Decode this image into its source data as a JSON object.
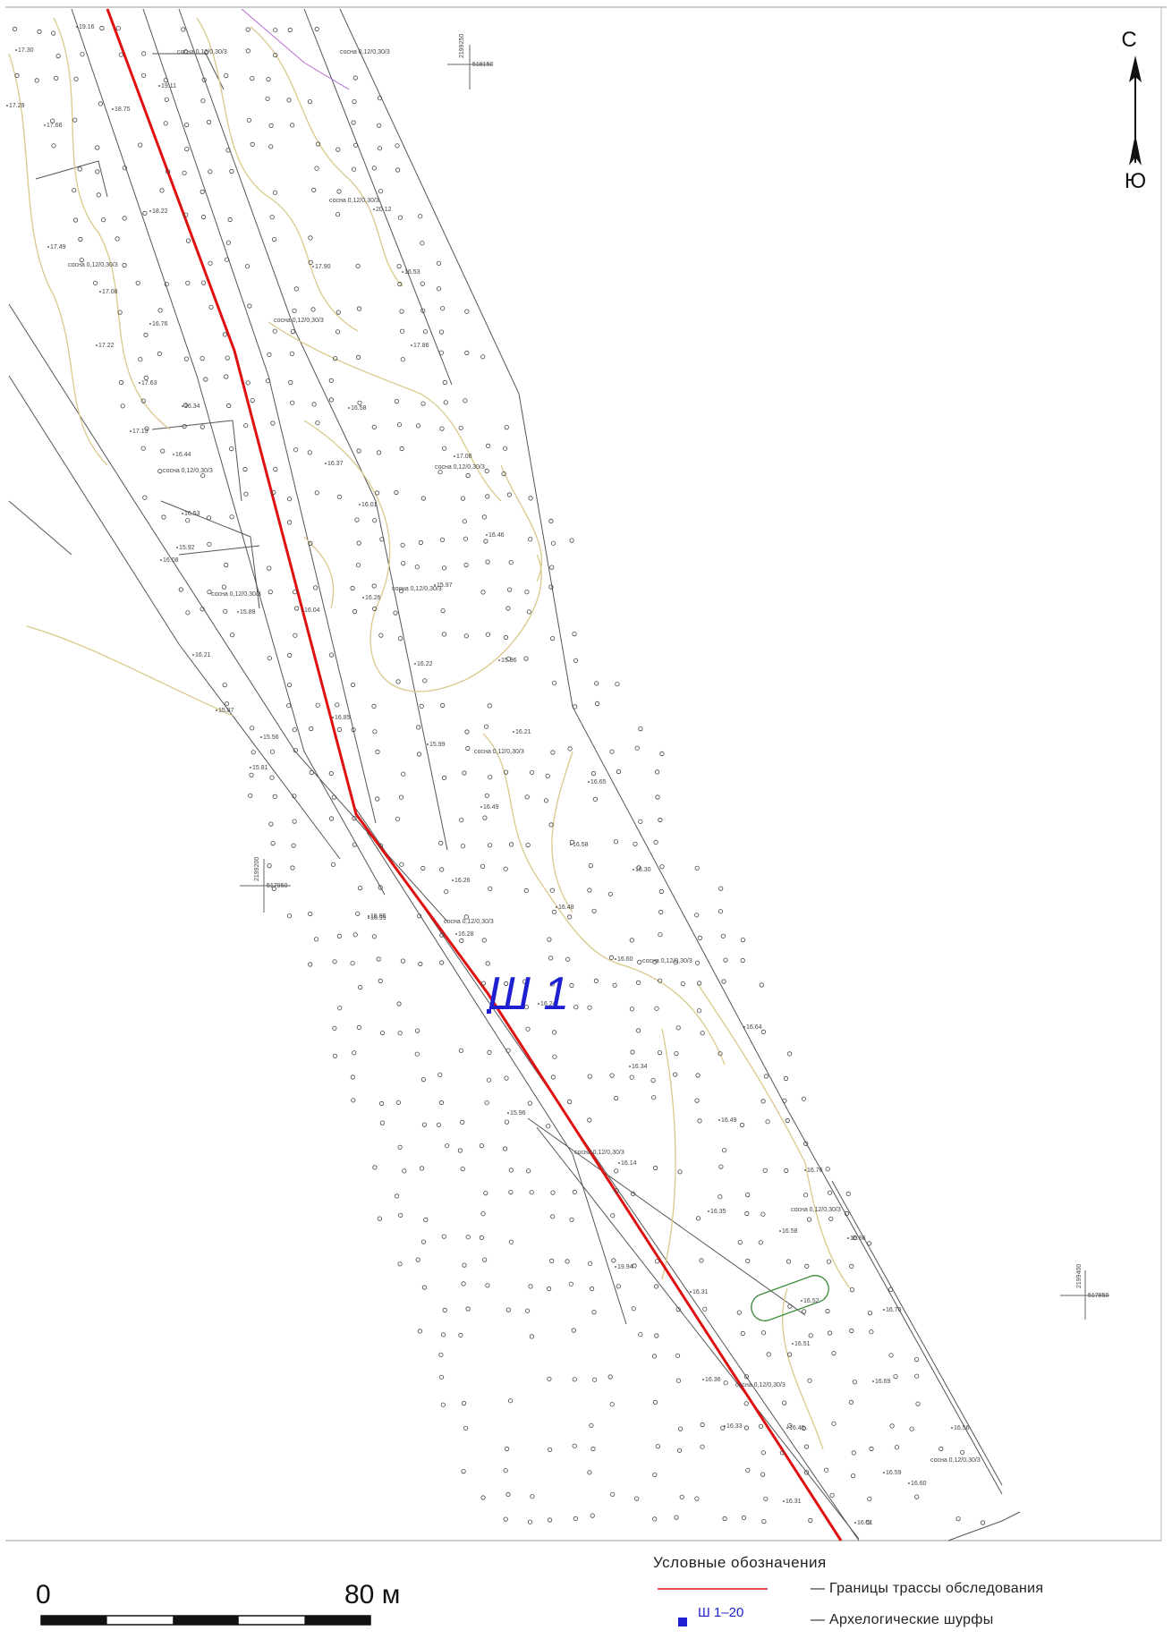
{
  "north_arrow": {
    "top_label": "С",
    "bottom_label": "Ю"
  },
  "pit_label": "Ш 1",
  "scale_bar": {
    "start_label": "0",
    "end_label": "80 м"
  },
  "legend": {
    "title": "Условные обозначения",
    "items": [
      {
        "symbol_label": "",
        "text": "— Границы трассы обследования",
        "color": "#e01010"
      },
      {
        "symbol_label": "Ш 1–20",
        "text": "— Архелогические шурфы",
        "color": "#1f1fd2"
      }
    ]
  },
  "coordinates": [
    {
      "y": "2199250",
      "x": "518150"
    },
    {
      "y": "2199200",
      "x": "517950"
    },
    {
      "y": "2199400",
      "x": "517850"
    }
  ],
  "vegetation_note": "сосна 0,12/0,30/3",
  "elevations": [
    "19.16",
    "17.30",
    "18.75",
    "17.66",
    "17.49",
    "17.29",
    "18.22",
    "17.08",
    "16.76",
    "17.22",
    "17.63",
    "16.34",
    "17.13",
    "16.44",
    "16.53",
    "15.92",
    "16.08",
    "15.89",
    "16.21",
    "15.87",
    "15.56",
    "15.81",
    "19.11",
    "17.90",
    "16.53",
    "17.86",
    "16.58",
    "16.37",
    "16.01",
    "17.06",
    "16.46",
    "16.26",
    "15.97",
    "16.22",
    "15.99",
    "15.96",
    "16.21",
    "16.49",
    "16.65",
    "16.58",
    "16.30",
    "16.26",
    "16.28",
    "16.48",
    "16.95",
    "16.60",
    "16.24",
    "16.64",
    "16.34",
    "16.49",
    "15.96",
    "16.14",
    "16.35",
    "16.76",
    "16.58",
    "16.86",
    "19.94",
    "16.31",
    "16.52",
    "16.76",
    "16.51",
    "16.36",
    "16.69",
    "16.40",
    "16.56",
    "16.33",
    "16.59",
    "16.60",
    "16.31",
    "16.51",
    "20.12",
    "16.85",
    "16.95",
    "16.04"
  ]
}
